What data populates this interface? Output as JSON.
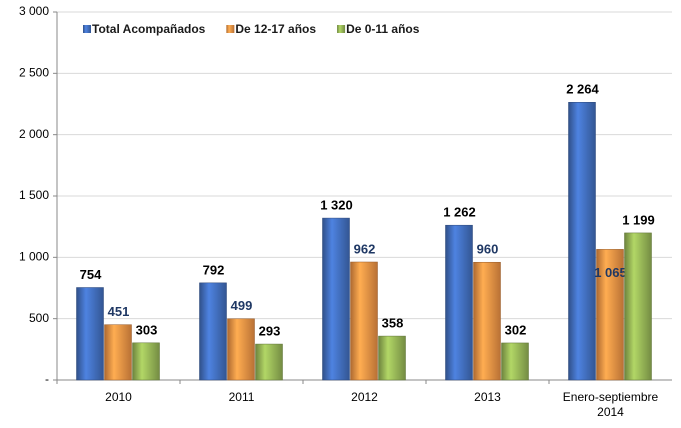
{
  "chart_data": {
    "type": "bar",
    "categories": [
      "2010",
      "2011",
      "2012",
      "2013",
      "Enero-septiembre 2014"
    ],
    "series": [
      {
        "name": "Total Acompañados",
        "color": "#4472c4",
        "values": [
          754,
          792,
          1320,
          1262,
          2264
        ],
        "value_labels": [
          "754",
          "792",
          "1 320",
          "1 262",
          "2 264"
        ]
      },
      {
        "name": "De 12-17 años",
        "color": "#f79646",
        "values": [
          451,
          499,
          962,
          960,
          1065
        ],
        "value_labels": [
          "451",
          "499",
          "962",
          "960",
          "1 065"
        ]
      },
      {
        "name": "De 0-11 años",
        "color": "#9bbb59",
        "values": [
          303,
          293,
          358,
          302,
          1199
        ],
        "value_labels": [
          "303",
          "293",
          "358",
          "302",
          "1 199"
        ]
      }
    ],
    "ylim": [
      0,
      3000
    ],
    "yticks": [
      {
        "value": 0,
        "label": "-"
      },
      500,
      {
        "value": 1000,
        "label": "1 000"
      },
      {
        "value": 1500,
        "label": "1 500"
      },
      {
        "value": 2000,
        "label": "2 000"
      },
      {
        "value": 2500,
        "label": "2 500"
      },
      {
        "value": 3000,
        "label": "3 000"
      }
    ],
    "grid": true,
    "legend": "top"
  }
}
